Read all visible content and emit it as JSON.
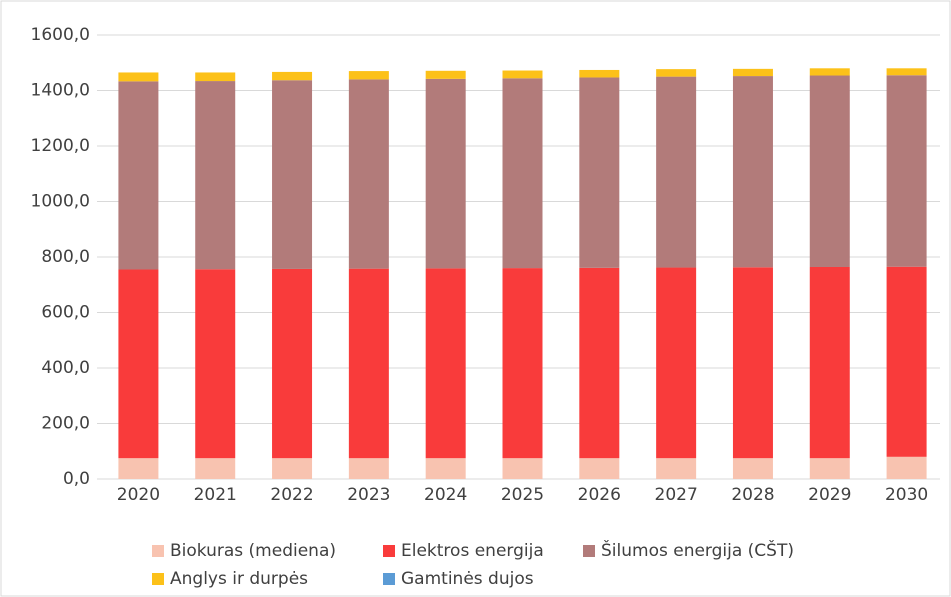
{
  "chart_data": {
    "type": "stacked_bar",
    "categories": [
      "2020",
      "2021",
      "2022",
      "2023",
      "2024",
      "2025",
      "2026",
      "2027",
      "2028",
      "2029",
      "2030"
    ],
    "series": [
      {
        "name": "Biokuras (mediena)",
        "color": "#f8c3b0",
        "values": [
          75,
          75,
          75,
          75,
          75,
          75,
          75,
          75,
          75,
          75,
          80
        ]
      },
      {
        "name": "Elektros energija",
        "color": "#f93b3b",
        "values": [
          680,
          681,
          682,
          683,
          684,
          685,
          686,
          687,
          688,
          689,
          685
        ]
      },
      {
        "name": "Šilumos energija (CŠT)",
        "color": "#b27b7a",
        "values": [
          678,
          678,
          680,
          682,
          683,
          684,
          686,
          688,
          689,
          690,
          690
        ]
      },
      {
        "name": "Anglys ir durpės",
        "color": "#fcc119",
        "values": [
          32,
          31,
          30,
          30,
          29,
          28,
          27,
          27,
          26,
          26,
          25
        ]
      },
      {
        "name": "Gamtinės dujos",
        "color": "#5b9bd5",
        "values": [
          0,
          0,
          0,
          0,
          0,
          0,
          0,
          0,
          0,
          0,
          0
        ]
      }
    ],
    "ylim": [
      0,
      1600
    ],
    "yticks": [
      {
        "value": 0,
        "label": "0,0"
      },
      {
        "value": 200,
        "label": "200,0"
      },
      {
        "value": 400,
        "label": "400,0"
      },
      {
        "value": 600,
        "label": "600,0"
      },
      {
        "value": 800,
        "label": "800,0"
      },
      {
        "value": 1000,
        "label": "1000,0"
      },
      {
        "value": 1200,
        "label": "1200,0"
      },
      {
        "value": 1400,
        "label": "1400,0"
      },
      {
        "value": 1600,
        "label": "1600,0"
      }
    ],
    "grid": true,
    "legend": "bottom"
  }
}
